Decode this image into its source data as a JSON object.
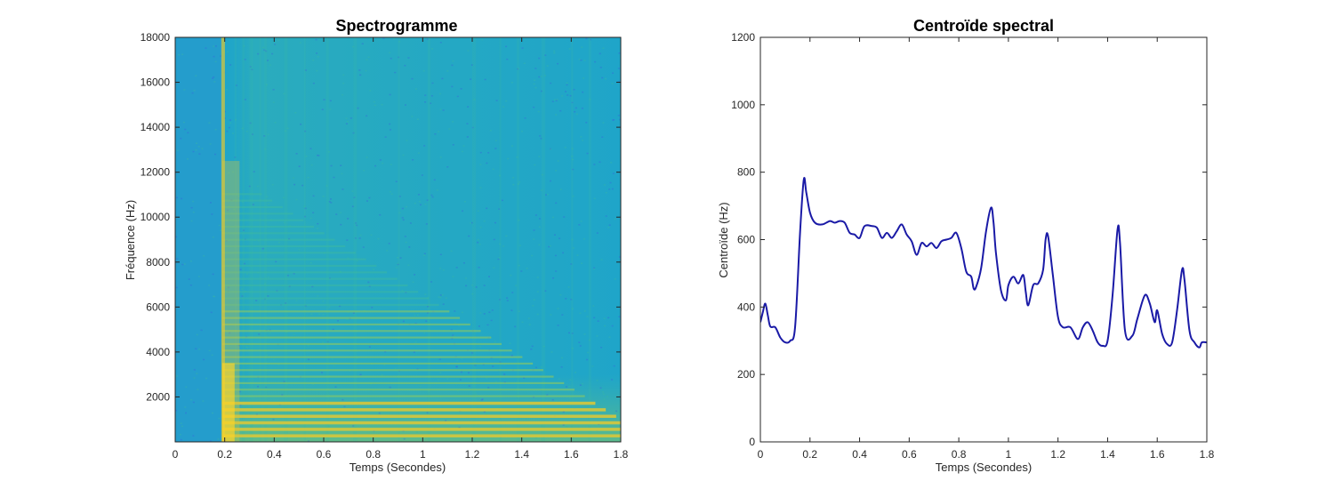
{
  "chart_data": [
    {
      "type": "heatmap",
      "title": "Spectrogramme",
      "xlabel": "Temps (Secondes)",
      "ylabel": "Fréquence (Hz)",
      "xlim": [
        0,
        1.8
      ],
      "ylim": [
        0,
        18000
      ],
      "xticks": [
        "0",
        "0.2",
        "0.4",
        "0.6",
        "0.8",
        "1",
        "1.2",
        "1.4",
        "1.6",
        "1.8"
      ],
      "yticks": [
        "2000",
        "4000",
        "6000",
        "8000",
        "10000",
        "12000",
        "14000",
        "16000",
        "18000"
      ],
      "background_color": "#1fa5c9",
      "colormap": [
        "#3a5ce0",
        "#1fa5c9",
        "#3dbb9e",
        "#8cc960",
        "#d6c63b",
        "#fbd42a"
      ],
      "onset_time": 0.19,
      "harmonics_hz": [
        290,
        580,
        870,
        1160,
        1450,
        1740,
        2030,
        2320,
        2610,
        2900,
        3190,
        3480,
        3770,
        4060,
        4350,
        4640,
        4930,
        5220,
        5510,
        5800,
        6090,
        6380,
        6670,
        6960,
        7250,
        7540,
        7830,
        8120,
        8410,
        8700,
        8990,
        9280,
        9570,
        9860,
        10150,
        10440,
        10730,
        11020
      ]
    },
    {
      "type": "line",
      "title": "Centroïde spectral",
      "xlabel": "Temps (Secondes)",
      "ylabel": "Centroïde (Hz)",
      "xlim": [
        0,
        1.8
      ],
      "ylim": [
        0,
        1200
      ],
      "xticks": [
        "0",
        "0.2",
        "0.4",
        "0.6",
        "0.8",
        "1",
        "1.2",
        "1.4",
        "1.6",
        "1.8"
      ],
      "yticks": [
        "0",
        "200",
        "400",
        "600",
        "800",
        "1000",
        "1200"
      ],
      "line_color": "#1a1aa6",
      "series": [
        {
          "x": [
            0,
            0.01,
            0.02,
            0.03,
            0.04,
            0.06,
            0.08,
            0.1,
            0.12,
            0.14,
            0.16,
            0.175,
            0.185,
            0.2,
            0.22,
            0.25,
            0.28,
            0.3,
            0.32,
            0.34,
            0.36,
            0.38,
            0.4,
            0.42,
            0.45,
            0.47,
            0.49,
            0.51,
            0.53,
            0.55,
            0.57,
            0.59,
            0.61,
            0.63,
            0.65,
            0.67,
            0.69,
            0.71,
            0.73,
            0.75,
            0.77,
            0.79,
            0.81,
            0.83,
            0.85,
            0.86,
            0.87,
            0.89,
            0.91,
            0.93,
            0.94,
            0.95,
            0.97,
            0.99,
            1.0,
            1.02,
            1.04,
            1.06,
            1.07,
            1.08,
            1.1,
            1.12,
            1.14,
            1.15,
            1.16,
            1.18,
            1.2,
            1.22,
            1.25,
            1.28,
            1.3,
            1.32,
            1.34,
            1.36,
            1.38,
            1.4,
            1.42,
            1.44,
            1.45,
            1.47,
            1.5,
            1.52,
            1.55,
            1.57,
            1.59,
            1.6,
            1.62,
            1.64,
            1.66,
            1.68,
            1.7,
            1.71,
            1.73,
            1.75,
            1.77,
            1.78,
            1.8
          ],
          "y": [
            355,
            385,
            410,
            375,
            342,
            340,
            310,
            295,
            300,
            340,
            620,
            778,
            740,
            680,
            650,
            645,
            655,
            650,
            655,
            650,
            620,
            615,
            605,
            640,
            640,
            635,
            605,
            620,
            605,
            625,
            645,
            615,
            595,
            555,
            590,
            580,
            590,
            575,
            595,
            600,
            605,
            620,
            575,
            505,
            490,
            455,
            460,
            515,
            625,
            695,
            650,
            560,
            450,
            420,
            465,
            490,
            470,
            495,
            445,
            405,
            465,
            470,
            510,
            600,
            610,
            490,
            370,
            340,
            340,
            305,
            340,
            355,
            330,
            295,
            285,
            300,
            435,
            630,
            590,
            330,
            315,
            365,
            435,
            410,
            355,
            390,
            320,
            290,
            295,
            390,
            510,
            480,
            330,
            295,
            280,
            295,
            295
          ]
        }
      ]
    }
  ]
}
